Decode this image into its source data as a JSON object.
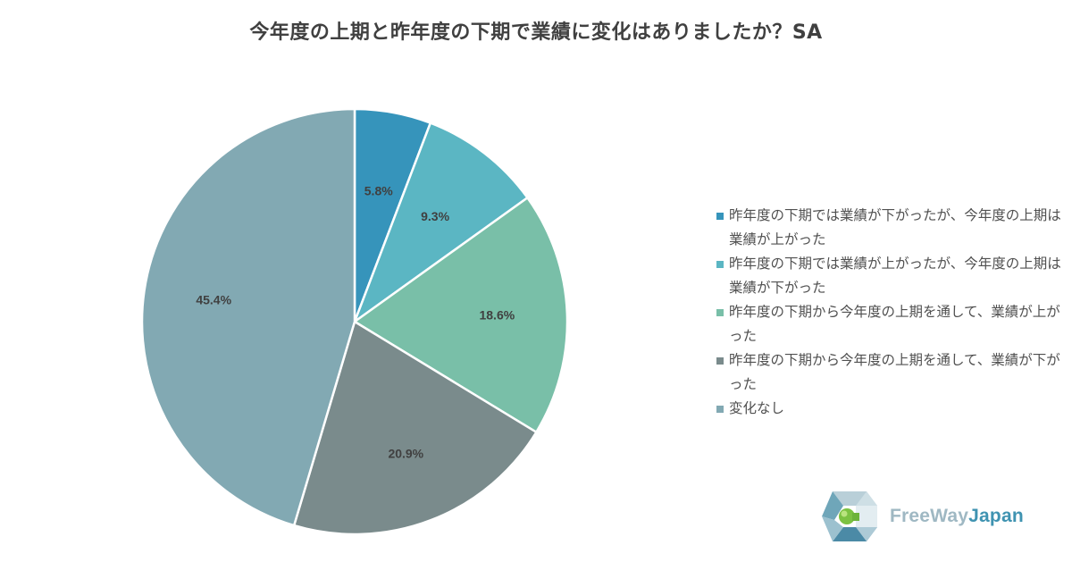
{
  "title": "今年度の上期と昨年度の下期で業績に変化はありましたか？SA",
  "chart_data": {
    "type": "pie",
    "title": "今年度の上期と昨年度の下期で業績に変化はありましたか？SA",
    "categories": [
      "昨年度の下期では業績が下がったが、今年度の上期は業績が上がった",
      "昨年度の下期では業績が上がったが、今年度の上期は業績が下がった",
      "昨年度の下期から今年度の上期を通して、業績が上がった",
      "昨年度の下期から今年度の上期を通して、業績が下がった",
      "変化なし"
    ],
    "values": [
      5.8,
      9.3,
      18.6,
      20.9,
      45.4
    ],
    "data_labels": [
      "5.8%",
      "9.3%",
      "18.6%",
      "20.9%",
      "45.4%"
    ],
    "colors": [
      "#3694bb",
      "#5bb6c3",
      "#79bfa8",
      "#7a8b8c",
      "#82a9b3"
    ],
    "legend_position": "right"
  },
  "legend": {
    "items": [
      "昨年度の下期では業績が下がったが、今年度の上期は業績が上がった",
      "昨年度の下期では業績が上がったが、今年度の上期は業績が下がった",
      "昨年度の下期から今年度の上期を通して、業績が上がった",
      "昨年度の下期から今年度の上期を通して、業績が下がった",
      "変化なし"
    ]
  },
  "logo": {
    "part1": "FreeWay",
    "part2": "Japan"
  }
}
